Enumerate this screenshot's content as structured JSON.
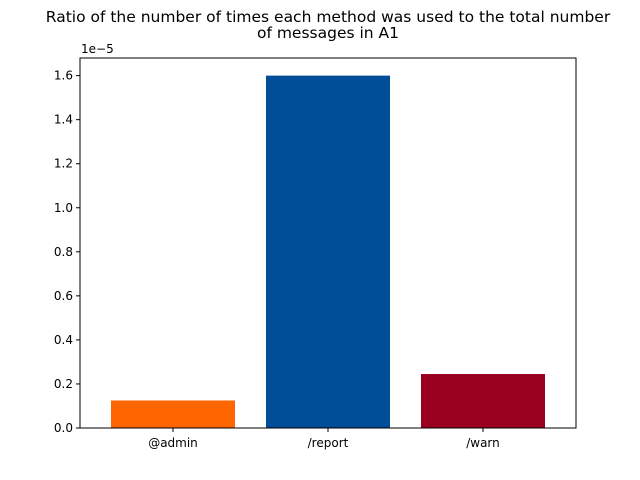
{
  "chart_data": {
    "type": "bar",
    "title_lines": [
      "Ratio of the number of times each method was used to the total number",
      "of messages in A1"
    ],
    "xlabel": "",
    "ylabel": "",
    "categories": [
      "@admin",
      "/report",
      "/warn"
    ],
    "values": [
      1.25e-06,
      1.6e-05,
      2.45e-06
    ],
    "bar_colors": [
      "#ff6600",
      "#004e98",
      "#990020"
    ],
    "y_scale_label": "1e−5",
    "ylim": [
      0,
      1.68e-05
    ],
    "y_ticks": [
      0,
      2e-06,
      4e-06,
      6e-06,
      8e-06,
      1e-05,
      1.2e-05,
      1.4e-05,
      1.6e-05
    ],
    "y_tick_labels": [
      "0.0",
      "0.2",
      "0.4",
      "0.6",
      "0.8",
      "1.0",
      "1.2",
      "1.4",
      "1.6"
    ],
    "grid": false,
    "legend": "none"
  }
}
